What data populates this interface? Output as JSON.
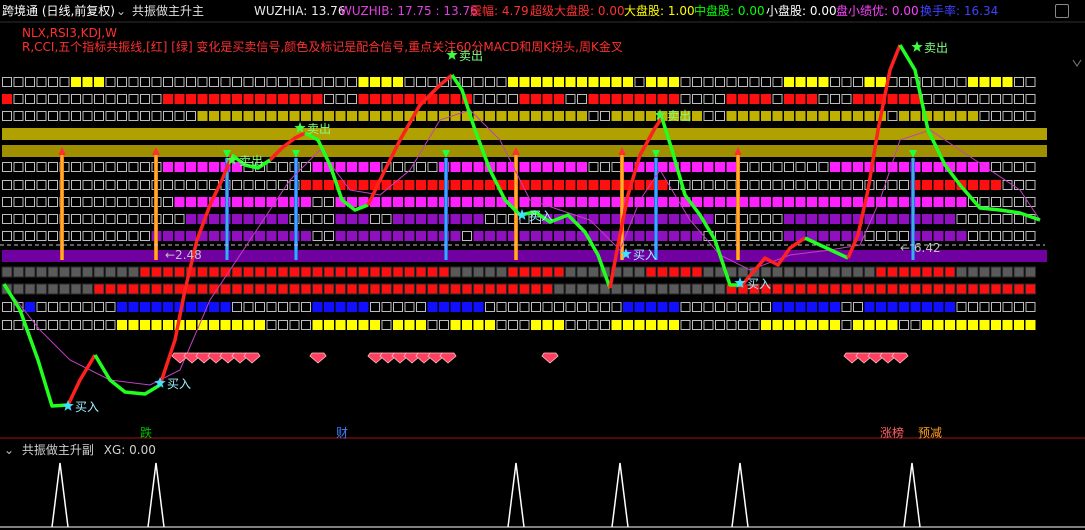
{
  "header": {
    "title": "跨境通 (日线,前复权)",
    "indicator_name": "共振做主升主",
    "items": [
      {
        "label": "WUZHIA:",
        "value": "13.76",
        "color": "#e8e8e8"
      },
      {
        "label": "WUZHIB:",
        "value": "17.75 : 13.76",
        "color": "#e040e0"
      },
      {
        "label": "震幅:",
        "value": "4.79",
        "color": "#ff3030"
      },
      {
        "label": "超级大盘股:",
        "value": "0.00",
        "color": "#ff3030"
      },
      {
        "label": "大盘股:",
        "value": "1.00",
        "color": "#ffff00"
      },
      {
        "label": "中盘股:",
        "value": "0.00",
        "color": "#00ff00"
      },
      {
        "label": "小盘股:",
        "value": "0.00",
        "color": "#ffffff"
      },
      {
        "label": "盘小绩优:",
        "value": "0.00",
        "color": "#ff40ff"
      },
      {
        "label": "换手率:",
        "value": "16.34",
        "color": "#4040ff"
      }
    ]
  },
  "subtitle": {
    "line1": "NLX,RSI3,KDJ,W",
    "line2": "R,CCI,五个指标共振线,[红] [绿] 变化是买卖信号,颜色及标记是配合信号,重点关注60分MACD和周K拐头,周K金叉"
  },
  "annotations": {
    "buy": "买入",
    "sell": "卖出",
    "low_value": "2.48",
    "high_value": "6.42",
    "arrow_left": "←"
  },
  "bottom_tags": [
    {
      "text": "跌",
      "color": "#00c000"
    },
    {
      "text": "财",
      "color": "#4080ff"
    },
    {
      "text": "涨榜",
      "color": "#ff6060"
    },
    {
      "text": "预减",
      "color": "#ffa020"
    }
  ],
  "lower_panel": {
    "title": "共振做主升副",
    "xg_label": "XG:",
    "xg_value": "0.00"
  },
  "colors": {
    "background": "#000000",
    "main_up": "#ff2020",
    "main_down": "#20ff20",
    "ma_line": "#c040c0",
    "yellow": "#ffff00",
    "olive": "#c0b000",
    "red": "#ff1010",
    "magenta": "#ff20ff",
    "purple": "#9010c0",
    "dark_purple": "#7000a0",
    "grey": "#606060",
    "blue": "#1010ff"
  }
}
